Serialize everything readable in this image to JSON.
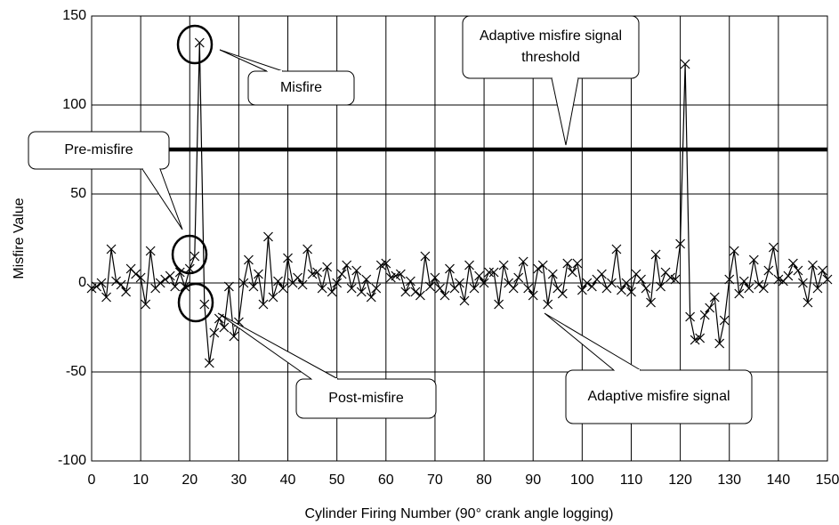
{
  "chart_data": {
    "type": "line",
    "x_label": "Cylinder Firing Number (90° crank angle logging)",
    "y_label": "Misfire Value",
    "xlim": [
      0,
      150
    ],
    "xticks": [
      0,
      10,
      20,
      30,
      40,
      50,
      60,
      70,
      80,
      90,
      100,
      110,
      120,
      130,
      140,
      150
    ],
    "ylim": [
      -100,
      150
    ],
    "yticks": [
      -100,
      -50,
      0,
      50,
      100,
      150
    ],
    "grid": true,
    "series": [
      {
        "name": "Adaptive misfire signal",
        "color": "#000000",
        "marker": "x",
        "x": [
          0,
          1,
          2,
          3,
          4,
          5,
          6,
          7,
          8,
          9,
          10,
          11,
          12,
          13,
          14,
          15,
          16,
          17,
          18,
          19,
          20,
          21,
          22,
          23,
          24,
          25,
          26,
          27,
          28,
          29,
          30,
          31,
          32,
          33,
          34,
          35,
          36,
          37,
          38,
          39,
          40,
          41,
          42,
          43,
          44,
          45,
          46,
          47,
          48,
          49,
          50,
          51,
          52,
          53,
          54,
          55,
          56,
          57,
          58,
          59,
          60,
          61,
          62,
          63,
          64,
          65,
          66,
          67,
          68,
          69,
          70,
          71,
          72,
          73,
          74,
          75,
          76,
          77,
          78,
          79,
          80,
          81,
          82,
          83,
          84,
          85,
          86,
          87,
          88,
          89,
          90,
          91,
          92,
          93,
          94,
          95,
          96,
          97,
          98,
          99,
          100,
          101,
          102,
          103,
          104,
          105,
          106,
          107,
          108,
          109,
          110,
          111,
          112,
          113,
          114,
          115,
          116,
          117,
          118,
          119,
          120,
          121,
          122,
          123,
          124,
          125,
          126,
          127,
          128,
          129,
          130,
          131,
          132,
          133,
          134,
          135,
          136,
          137,
          138,
          139,
          140,
          141,
          142,
          143,
          144,
          145,
          146,
          147,
          148,
          149,
          150
        ],
        "values": [
          -3,
          -2,
          0,
          -8,
          19,
          1,
          -1,
          -5,
          8,
          5,
          3,
          -12,
          18,
          -3,
          0,
          2,
          4,
          -2,
          6,
          -2,
          8,
          15,
          135,
          -12,
          -45,
          -28,
          -20,
          -25,
          -2,
          -30,
          -22,
          0,
          13,
          -2,
          5,
          -12,
          26,
          -8,
          1,
          -3,
          14,
          0,
          3,
          -1,
          19,
          5,
          6,
          -3,
          9,
          -5,
          0,
          5,
          10,
          -3,
          7,
          -5,
          2,
          -8,
          -3,
          10,
          11,
          3,
          4,
          5,
          -5,
          1,
          -5,
          -7,
          15,
          -2,
          3,
          -3,
          -7,
          8,
          -3,
          0,
          -10,
          10,
          -3,
          4,
          0,
          6,
          6,
          -12,
          10,
          0,
          -3,
          3,
          12,
          -3,
          -7,
          8,
          10,
          -12,
          5,
          -3,
          -6,
          11,
          6,
          11,
          -4,
          0,
          -2,
          2,
          5,
          -3,
          0,
          19,
          -4,
          0,
          -5,
          5,
          2,
          -3,
          -11,
          16,
          -2,
          6,
          3,
          2,
          22,
          123,
          -19,
          -32,
          -31,
          -18,
          -14,
          -8,
          -34,
          -21,
          2,
          18,
          -6,
          1,
          -3,
          13,
          -1,
          -3,
          7,
          20,
          2,
          1,
          4,
          11,
          7,
          0,
          -11,
          10,
          -3,
          7,
          2
        ]
      },
      {
        "name": "Adaptive misfire signal threshold",
        "color": "#000000",
        "marker": "none",
        "x": [
          0,
          150
        ],
        "values": [
          75,
          75
        ]
      }
    ],
    "annotations": [
      "Misfire",
      "Adaptive misfire signal threshold",
      "Pre-misfire",
      "Post-misfire",
      "Adaptive misfire signal"
    ]
  }
}
